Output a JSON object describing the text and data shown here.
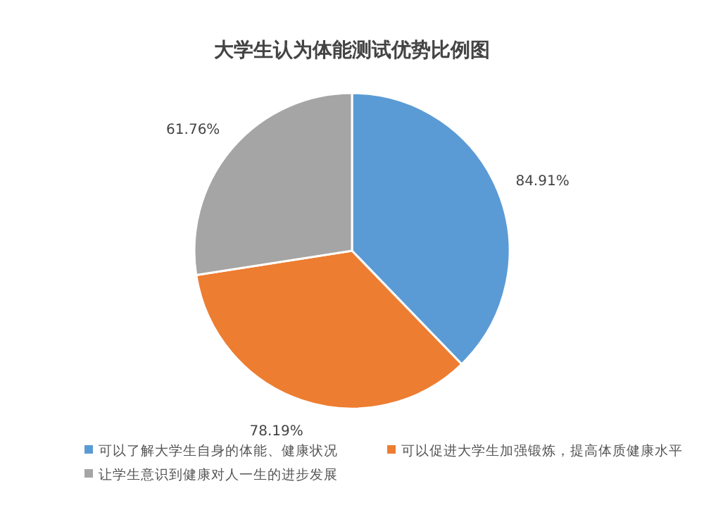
{
  "chart_data": {
    "type": "pie",
    "title": "大学生认为体能测试优势比例图",
    "categories": [
      "可以了解大学生自身的体能、健康状况",
      "可以促进大学生加强锻炼，提高体质健康水平",
      "让学生意识到健康对人一生的进步发展"
    ],
    "values": [
      84.91,
      78.19,
      61.76
    ],
    "value_labels": [
      "84.91%",
      "78.19%",
      "61.76%"
    ],
    "colors": [
      "#5b9bd5",
      "#ed7d31",
      "#a5a5a5"
    ],
    "legend": "bottom"
  }
}
